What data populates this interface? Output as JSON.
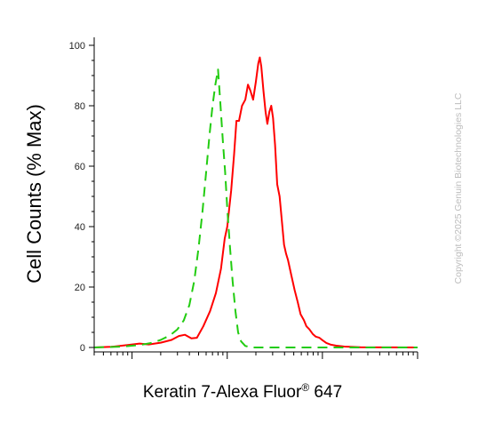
{
  "chart_data": {
    "type": "line",
    "title": "",
    "xlabel": "Keratin 7-Alexa Fluor",
    "xlabel_sup": "®",
    "xlabel_suffix": " 647",
    "ylabel": "Cell Counts (% Max)",
    "ylim": [
      0,
      100
    ],
    "yticks": [
      "0",
      "20",
      "40",
      "60",
      "80",
      "100"
    ],
    "x_scale": "log",
    "xlim": [
      0.4,
      1000
    ],
    "grid": false,
    "series": [
      {
        "color": "#ff0000",
        "dash": "solid",
        "points": [
          [
            0.4,
            0
          ],
          [
            0.6,
            0.2
          ],
          [
            0.9,
            0.8
          ],
          [
            1.2,
            1.3
          ],
          [
            1.5,
            1.0
          ],
          [
            2,
            1.6
          ],
          [
            2.6,
            2.5
          ],
          [
            3.1,
            3.8
          ],
          [
            3.6,
            4.2
          ],
          [
            4.2,
            3.0
          ],
          [
            4.8,
            3.2
          ],
          [
            5.6,
            7
          ],
          [
            6.6,
            12
          ],
          [
            7.6,
            18
          ],
          [
            8.6,
            26
          ],
          [
            9.4,
            36
          ],
          [
            10,
            40
          ],
          [
            11,
            52
          ],
          [
            11.8,
            64
          ],
          [
            12.5,
            75
          ],
          [
            13.3,
            75
          ],
          [
            14.3,
            80
          ],
          [
            15.5,
            82
          ],
          [
            16.5,
            87
          ],
          [
            17.5,
            85
          ],
          [
            18.7,
            82
          ],
          [
            20,
            88
          ],
          [
            21.2,
            94
          ],
          [
            22,
            96
          ],
          [
            22.8,
            93
          ],
          [
            24,
            85
          ],
          [
            25.3,
            78
          ],
          [
            26.4,
            74
          ],
          [
            27.7,
            78
          ],
          [
            29,
            80
          ],
          [
            30.3,
            76
          ],
          [
            31.8,
            67
          ],
          [
            33.5,
            54
          ],
          [
            35.5,
            50
          ],
          [
            37.5,
            42
          ],
          [
            39.5,
            34
          ],
          [
            41.5,
            31
          ],
          [
            43.5,
            29
          ],
          [
            47,
            24
          ],
          [
            51,
            19
          ],
          [
            55,
            15
          ],
          [
            59,
            11
          ],
          [
            64,
            9
          ],
          [
            68,
            7
          ],
          [
            73,
            6
          ],
          [
            79,
            4.5
          ],
          [
            85,
            3.6
          ],
          [
            93,
            3.2
          ],
          [
            100,
            2.4
          ],
          [
            110,
            1.5
          ],
          [
            123,
            0.9
          ],
          [
            140,
            0.6
          ],
          [
            170,
            0.3
          ],
          [
            250,
            0.1
          ],
          [
            1000,
            0
          ]
        ]
      },
      {
        "color": "#22cc11",
        "dash": "dashed",
        "points": [
          [
            0.4,
            0
          ],
          [
            0.8,
            0.3
          ],
          [
            1.2,
            0.8
          ],
          [
            1.6,
            1.5
          ],
          [
            2,
            2.5
          ],
          [
            2.5,
            4
          ],
          [
            3,
            6
          ],
          [
            3.5,
            9
          ],
          [
            4,
            14
          ],
          [
            4.5,
            22
          ],
          [
            5,
            33
          ],
          [
            5.5,
            45
          ],
          [
            6,
            58
          ],
          [
            6.5,
            70
          ],
          [
            7,
            80
          ],
          [
            7.5,
            87
          ],
          [
            8,
            92
          ],
          [
            8.5,
            80
          ],
          [
            9,
            68
          ],
          [
            9.5,
            58
          ],
          [
            10,
            46
          ],
          [
            10.7,
            33
          ],
          [
            11.4,
            22
          ],
          [
            12.2,
            12
          ],
          [
            13,
            5
          ],
          [
            14,
            2
          ],
          [
            15.5,
            0.5
          ],
          [
            18,
            0
          ],
          [
            1000,
            0
          ]
        ]
      }
    ]
  },
  "copyright": "Copyright ©2025 Genuin Biotechnologies LLC"
}
